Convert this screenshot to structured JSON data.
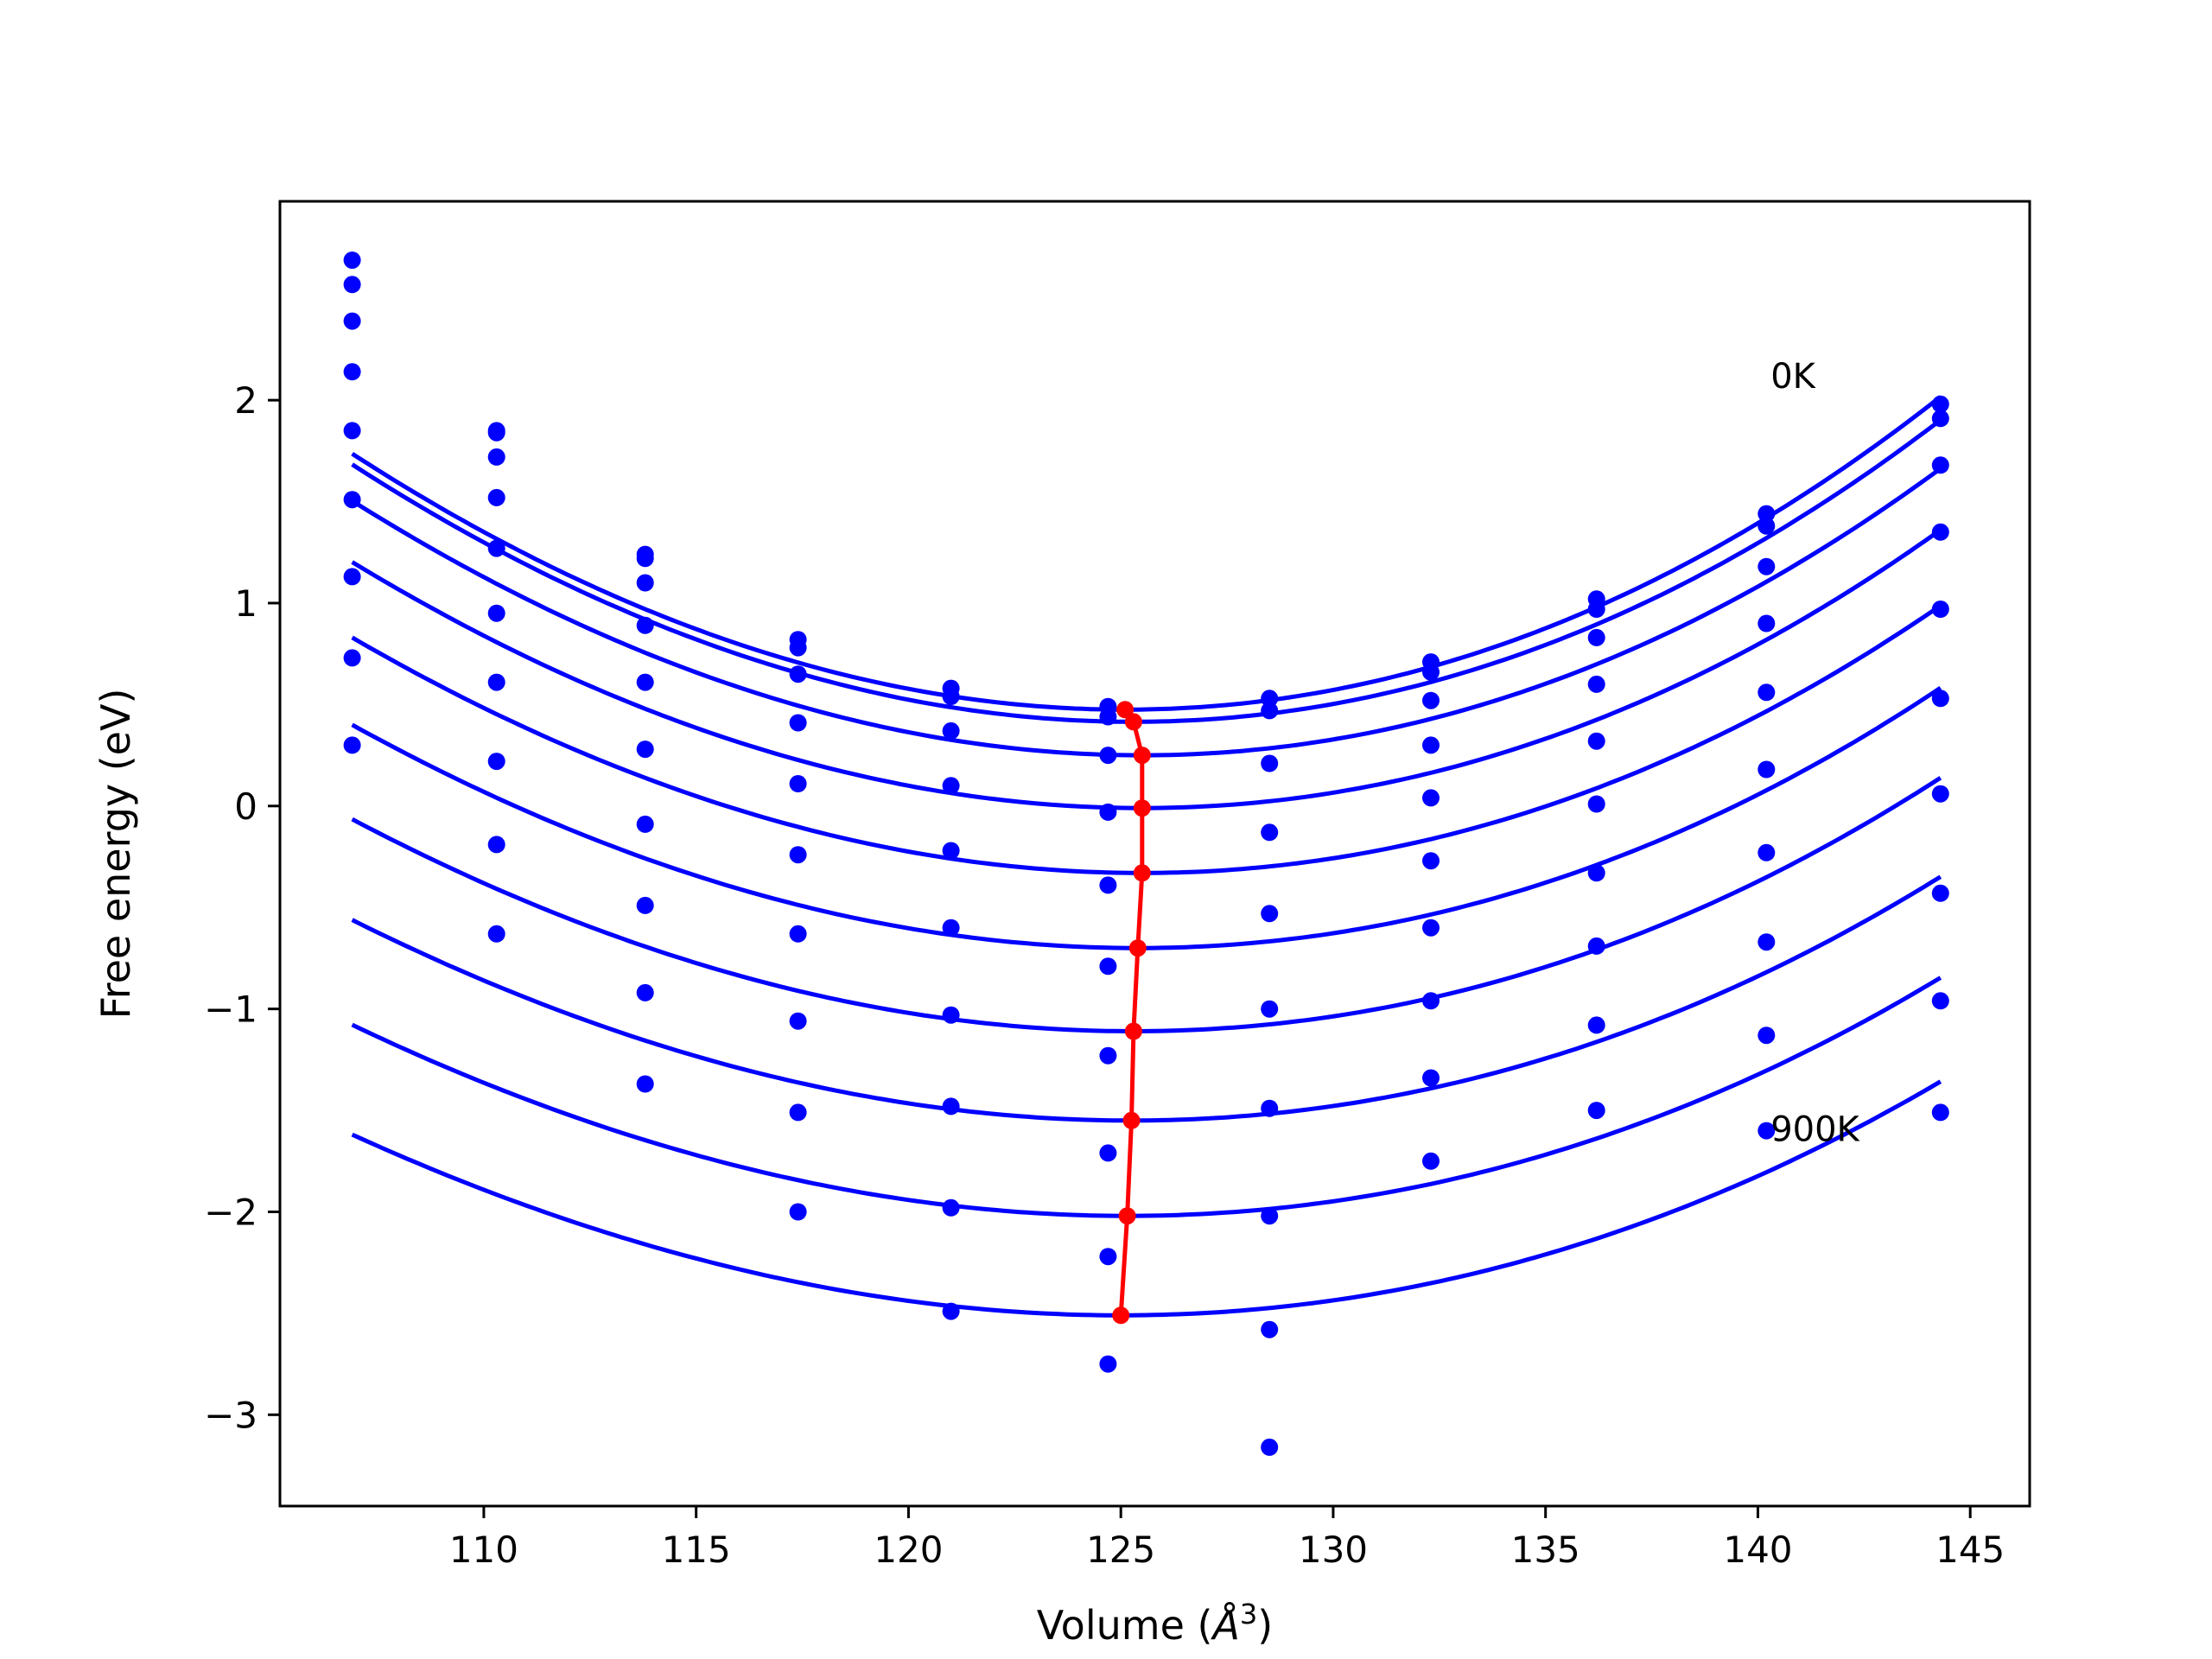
{
  "chart_data": {
    "type": "scatter",
    "title": "",
    "xlabel_prefix": "Volume (",
    "xlabel_symbol": "Å",
    "xlabel_exp": "3",
    "xlabel_suffix": ")",
    "ylabel": "Free energy (eV)",
    "xlim": [
      105.2,
      146.4
    ],
    "ylim": [
      -3.45,
      2.98
    ],
    "xticks": [
      110,
      115,
      120,
      125,
      130,
      135,
      140,
      145
    ],
    "yticks": [
      -3,
      -2,
      -1,
      0,
      1,
      2
    ],
    "ytick_labels": [
      "−3",
      "−2",
      "−1",
      "0",
      "1",
      "2"
    ],
    "grid": false,
    "legend": "none",
    "colors": {
      "points": "#0000ff",
      "curves": "#0000ff",
      "minima": "#ff0000"
    },
    "annotations": [
      {
        "text": "0K",
        "x": 140.3,
        "y": 2.06
      },
      {
        "text": "900K",
        "x": 140.3,
        "y": -1.65
      }
    ],
    "volumes": [
      106.9,
      110.3,
      113.8,
      117.4,
      121.0,
      124.7,
      128.5,
      132.3,
      136.2,
      140.2,
      144.3
    ],
    "series": [
      {
        "temperature": "0K",
        "points": [
          2.69,
          1.85,
          1.24,
          0.82,
          0.58,
          0.49,
          0.53,
          0.71,
          1.02,
          1.44,
          1.98
        ],
        "curve": {
          "a": 0.00399,
          "v0": 125.1,
          "e0": 0.475
        }
      },
      {
        "points": [
          2.57,
          1.84,
          1.22,
          0.78,
          0.54,
          0.44,
          0.47,
          0.66,
          0.97,
          1.38,
          1.91
        ],
        "curve": {
          "a": 0.00393,
          "v0": 125.3,
          "e0": 0.415
        }
      },
      {
        "points": [
          2.39,
          1.72,
          1.1,
          0.65,
          0.37,
          0.25,
          0.21,
          0.52,
          0.83,
          1.18,
          1.68
        ],
        "curve": {
          "a": 0.00381,
          "v0": 125.5,
          "e0": 0.25
        }
      },
      {
        "points": [
          2.14,
          1.52,
          0.89,
          0.41,
          0.1,
          -0.03,
          -0.13,
          0.3,
          0.6,
          0.9,
          1.35
        ],
        "curve": {
          "a": 0.00369,
          "v0": 125.5,
          "e0": -0.01
        }
      },
      {
        "points": [
          1.85,
          1.27,
          0.61,
          0.11,
          -0.22,
          -0.39,
          -0.53,
          0.04,
          0.32,
          0.56,
          0.97
        ],
        "curve": {
          "a": 0.00354,
          "v0": 125.5,
          "e0": -0.33
        }
      },
      {
        "points": [
          1.51,
          0.95,
          0.28,
          -0.24,
          -0.6,
          -0.79,
          -1.0,
          -0.27,
          0.01,
          0.18,
          0.53
        ],
        "curve": {
          "a": 0.0034,
          "v0": 125.4,
          "e0": -0.7
        }
      },
      {
        "points": [
          1.13,
          0.61,
          -0.09,
          -0.63,
          -1.03,
          -1.23,
          -1.49,
          -0.6,
          -0.33,
          -0.23,
          0.06
        ],
        "curve": {
          "a": 0.00327,
          "v0": 125.3,
          "e0": -1.11
        }
      },
      {
        "points": [
          0.73,
          0.22,
          -0.49,
          -1.06,
          -1.48,
          -1.71,
          -2.02,
          -0.96,
          -0.69,
          -0.67,
          -0.43
        ],
        "curve": {
          "a": 0.00312,
          "v0": 125.25,
          "e0": -1.55
        }
      },
      {
        "points": [
          0.3,
          -0.19,
          -0.92,
          -1.51,
          -1.98,
          -2.22,
          -2.58,
          -1.34,
          -1.08,
          -1.13,
          -0.96
        ],
        "curve": {
          "a": 0.00301,
          "v0": 125.15,
          "e0": -2.02
        }
      },
      {
        "temperature": "900K",
        "points": [
          null,
          -0.63,
          -1.37,
          -2.0,
          -2.49,
          -2.75,
          -3.16,
          -1.75,
          -1.5,
          -1.6,
          -1.51
        ],
        "curve": {
          "a": 0.0029,
          "v0": 125.0,
          "e0": -2.51
        }
      }
    ],
    "minima_line": {
      "x": [
        125.1,
        125.3,
        125.5,
        125.5,
        125.5,
        125.4,
        125.3,
        125.25,
        125.15,
        125.0
      ],
      "y": [
        0.475,
        0.415,
        0.25,
        -0.01,
        -0.33,
        -0.7,
        -1.11,
        -1.55,
        -2.02,
        -2.51
      ]
    }
  }
}
